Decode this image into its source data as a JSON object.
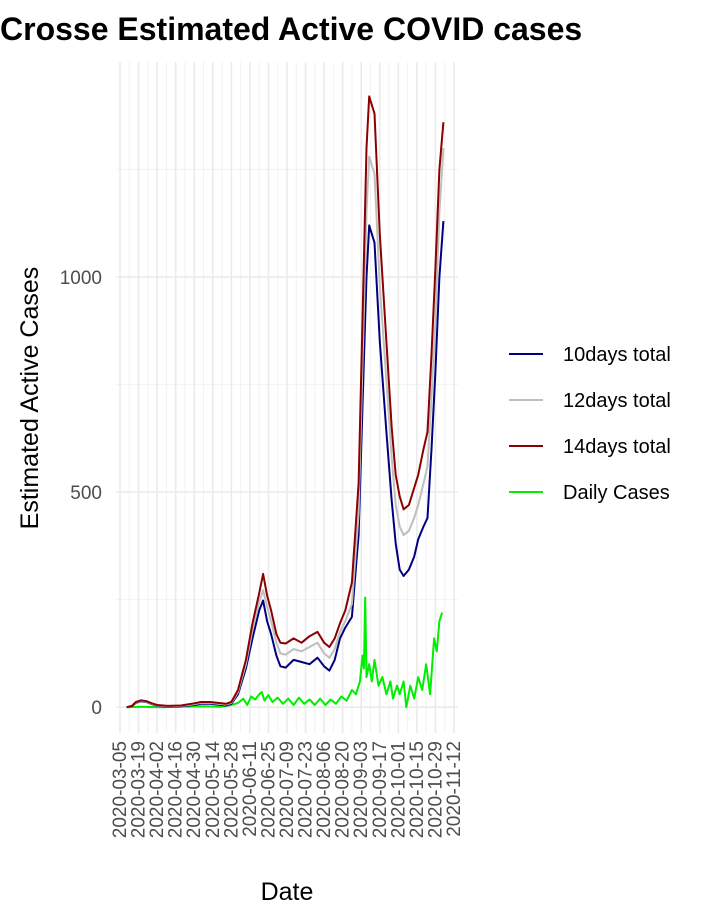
{
  "chart_data": {
    "type": "line",
    "title": "Crosse Estimated Active COVID cases",
    "xlabel": "Date",
    "ylabel": "Estimated Active Cases",
    "x_ticks": [
      "2020-03-05",
      "2020-03-19",
      "2020-04-02",
      "2020-04-16",
      "2020-04-30",
      "2020-05-14",
      "2020-05-28",
      "2020-06-11",
      "2020-06-25",
      "2020-07-09",
      "2020-07-23",
      "2020-08-06",
      "2020-08-20",
      "2020-09-03",
      "2020-09-17",
      "2020-10-01",
      "2020-10-15",
      "2020-10-29",
      "2020-11-12"
    ],
    "y_ticks": [
      "0",
      "500",
      "1000"
    ],
    "xlim": [
      "2020-03-05",
      "2020-11-12"
    ],
    "ylim": [
      -60,
      1500
    ],
    "grid": true,
    "legend_position": "right",
    "series": [
      {
        "name": "10days total",
        "color": "#000080",
        "points": [
          [
            "2020-03-10",
            0
          ],
          [
            "2020-03-14",
            2
          ],
          [
            "2020-03-17",
            10
          ],
          [
            "2020-03-21",
            14
          ],
          [
            "2020-03-25",
            12
          ],
          [
            "2020-03-29",
            7
          ],
          [
            "2020-04-02",
            3
          ],
          [
            "2020-04-10",
            1
          ],
          [
            "2020-04-20",
            2
          ],
          [
            "2020-04-30",
            5
          ],
          [
            "2020-05-05",
            8
          ],
          [
            "2020-05-12",
            8
          ],
          [
            "2020-05-18",
            6
          ],
          [
            "2020-05-24",
            4
          ],
          [
            "2020-05-28",
            8
          ],
          [
            "2020-06-02",
            30
          ],
          [
            "2020-06-08",
            90
          ],
          [
            "2020-06-13",
            160
          ],
          [
            "2020-06-18",
            225
          ],
          [
            "2020-06-21",
            248
          ],
          [
            "2020-06-24",
            200
          ],
          [
            "2020-06-27",
            170
          ],
          [
            "2020-07-01",
            120
          ],
          [
            "2020-07-04",
            95
          ],
          [
            "2020-07-08",
            92
          ],
          [
            "2020-07-14",
            110
          ],
          [
            "2020-07-20",
            105
          ],
          [
            "2020-07-26",
            100
          ],
          [
            "2020-08-01",
            115
          ],
          [
            "2020-08-06",
            95
          ],
          [
            "2020-08-10",
            85
          ],
          [
            "2020-08-14",
            110
          ],
          [
            "2020-08-18",
            160
          ],
          [
            "2020-08-22",
            185
          ],
          [
            "2020-08-27",
            210
          ],
          [
            "2020-09-01",
            400
          ],
          [
            "2020-09-04",
            700
          ],
          [
            "2020-09-07",
            1000
          ],
          [
            "2020-09-09",
            1120
          ],
          [
            "2020-09-13",
            1080
          ],
          [
            "2020-09-17",
            850
          ],
          [
            "2020-09-22",
            640
          ],
          [
            "2020-09-26",
            480
          ],
          [
            "2020-09-29",
            380
          ],
          [
            "2020-10-02",
            320
          ],
          [
            "2020-10-05",
            305
          ],
          [
            "2020-10-09",
            320
          ],
          [
            "2020-10-13",
            350
          ],
          [
            "2020-10-16",
            390
          ],
          [
            "2020-10-20",
            420
          ],
          [
            "2020-10-23",
            440
          ],
          [
            "2020-10-26",
            600
          ],
          [
            "2020-10-29",
            780
          ],
          [
            "2020-11-01",
            1000
          ],
          [
            "2020-11-04",
            1130
          ]
        ]
      },
      {
        "name": "12days total",
        "color": "#bebebe",
        "points": [
          [
            "2020-03-10",
            0
          ],
          [
            "2020-03-14",
            3
          ],
          [
            "2020-03-17",
            11
          ],
          [
            "2020-03-21",
            15
          ],
          [
            "2020-03-25",
            13
          ],
          [
            "2020-03-29",
            8
          ],
          [
            "2020-04-02",
            4
          ],
          [
            "2020-04-10",
            2
          ],
          [
            "2020-04-20",
            3
          ],
          [
            "2020-04-30",
            7
          ],
          [
            "2020-05-05",
            10
          ],
          [
            "2020-05-12",
            10
          ],
          [
            "2020-05-18",
            8
          ],
          [
            "2020-05-24",
            6
          ],
          [
            "2020-05-28",
            10
          ],
          [
            "2020-06-02",
            35
          ],
          [
            "2020-06-08",
            100
          ],
          [
            "2020-06-13",
            180
          ],
          [
            "2020-06-18",
            245
          ],
          [
            "2020-06-21",
            272
          ],
          [
            "2020-06-24",
            235
          ],
          [
            "2020-06-27",
            200
          ],
          [
            "2020-07-01",
            150
          ],
          [
            "2020-07-04",
            125
          ],
          [
            "2020-07-08",
            122
          ],
          [
            "2020-07-14",
            135
          ],
          [
            "2020-07-20",
            130
          ],
          [
            "2020-07-26",
            140
          ],
          [
            "2020-08-01",
            150
          ],
          [
            "2020-08-06",
            125
          ],
          [
            "2020-08-10",
            115
          ],
          [
            "2020-08-14",
            135
          ],
          [
            "2020-08-18",
            175
          ],
          [
            "2020-08-22",
            200
          ],
          [
            "2020-08-27",
            240
          ],
          [
            "2020-09-01",
            450
          ],
          [
            "2020-09-04",
            800
          ],
          [
            "2020-09-07",
            1150
          ],
          [
            "2020-09-09",
            1280
          ],
          [
            "2020-09-13",
            1240
          ],
          [
            "2020-09-17",
            980
          ],
          [
            "2020-09-22",
            760
          ],
          [
            "2020-09-26",
            580
          ],
          [
            "2020-09-29",
            470
          ],
          [
            "2020-10-02",
            420
          ],
          [
            "2020-10-05",
            400
          ],
          [
            "2020-10-09",
            410
          ],
          [
            "2020-10-13",
            440
          ],
          [
            "2020-10-16",
            470
          ],
          [
            "2020-10-20",
            520
          ],
          [
            "2020-10-23",
            560
          ],
          [
            "2020-10-26",
            720
          ],
          [
            "2020-10-29",
            900
          ],
          [
            "2020-11-01",
            1150
          ],
          [
            "2020-11-04",
            1300
          ]
        ]
      },
      {
        "name": "14days total",
        "color": "#8b0000",
        "points": [
          [
            "2020-03-10",
            0
          ],
          [
            "2020-03-14",
            3
          ],
          [
            "2020-03-17",
            12
          ],
          [
            "2020-03-21",
            16
          ],
          [
            "2020-03-25",
            14
          ],
          [
            "2020-03-29",
            9
          ],
          [
            "2020-04-02",
            5
          ],
          [
            "2020-04-10",
            3
          ],
          [
            "2020-04-20",
            4
          ],
          [
            "2020-04-30",
            9
          ],
          [
            "2020-05-05",
            12
          ],
          [
            "2020-05-12",
            12
          ],
          [
            "2020-05-18",
            10
          ],
          [
            "2020-05-24",
            8
          ],
          [
            "2020-05-28",
            12
          ],
          [
            "2020-06-02",
            40
          ],
          [
            "2020-06-08",
            110
          ],
          [
            "2020-06-13",
            195
          ],
          [
            "2020-06-18",
            265
          ],
          [
            "2020-06-21",
            310
          ],
          [
            "2020-06-24",
            260
          ],
          [
            "2020-06-27",
            225
          ],
          [
            "2020-07-01",
            170
          ],
          [
            "2020-07-04",
            150
          ],
          [
            "2020-07-08",
            148
          ],
          [
            "2020-07-14",
            160
          ],
          [
            "2020-07-20",
            150
          ],
          [
            "2020-07-26",
            165
          ],
          [
            "2020-08-01",
            175
          ],
          [
            "2020-08-06",
            150
          ],
          [
            "2020-08-10",
            140
          ],
          [
            "2020-08-14",
            160
          ],
          [
            "2020-08-18",
            195
          ],
          [
            "2020-08-22",
            225
          ],
          [
            "2020-08-27",
            290
          ],
          [
            "2020-09-01",
            520
          ],
          [
            "2020-09-04",
            900
          ],
          [
            "2020-09-07",
            1300
          ],
          [
            "2020-09-09",
            1420
          ],
          [
            "2020-09-13",
            1380
          ],
          [
            "2020-09-17",
            1100
          ],
          [
            "2020-09-22",
            850
          ],
          [
            "2020-09-26",
            650
          ],
          [
            "2020-09-29",
            540
          ],
          [
            "2020-10-02",
            490
          ],
          [
            "2020-10-05",
            460
          ],
          [
            "2020-10-09",
            470
          ],
          [
            "2020-10-13",
            510
          ],
          [
            "2020-10-16",
            540
          ],
          [
            "2020-10-20",
            600
          ],
          [
            "2020-10-23",
            640
          ],
          [
            "2020-10-26",
            820
          ],
          [
            "2020-10-29",
            1020
          ],
          [
            "2020-11-01",
            1250
          ],
          [
            "2020-11-04",
            1360
          ]
        ]
      },
      {
        "name": "Daily Cases",
        "color": "#00ee00",
        "points": [
          [
            "2020-03-10",
            0
          ],
          [
            "2020-03-20",
            1
          ],
          [
            "2020-04-05",
            0
          ],
          [
            "2020-04-20",
            1
          ],
          [
            "2020-05-05",
            2
          ],
          [
            "2020-05-20",
            1
          ],
          [
            "2020-05-28",
            5
          ],
          [
            "2020-06-02",
            10
          ],
          [
            "2020-06-06",
            20
          ],
          [
            "2020-06-09",
            5
          ],
          [
            "2020-06-12",
            25
          ],
          [
            "2020-06-15",
            18
          ],
          [
            "2020-06-18",
            30
          ],
          [
            "2020-06-20",
            35
          ],
          [
            "2020-06-22",
            15
          ],
          [
            "2020-06-25",
            28
          ],
          [
            "2020-06-28",
            12
          ],
          [
            "2020-07-02",
            22
          ],
          [
            "2020-07-06",
            8
          ],
          [
            "2020-07-10",
            20
          ],
          [
            "2020-07-14",
            5
          ],
          [
            "2020-07-18",
            22
          ],
          [
            "2020-07-22",
            8
          ],
          [
            "2020-07-26",
            18
          ],
          [
            "2020-07-30",
            5
          ],
          [
            "2020-08-03",
            20
          ],
          [
            "2020-08-07",
            5
          ],
          [
            "2020-08-11",
            18
          ],
          [
            "2020-08-15",
            8
          ],
          [
            "2020-08-19",
            25
          ],
          [
            "2020-08-23",
            15
          ],
          [
            "2020-08-27",
            40
          ],
          [
            "2020-08-30",
            30
          ],
          [
            "2020-09-02",
            60
          ],
          [
            "2020-09-04",
            120
          ],
          [
            "2020-09-05",
            90
          ],
          [
            "2020-09-06",
            255
          ],
          [
            "2020-09-07",
            70
          ],
          [
            "2020-09-09",
            100
          ],
          [
            "2020-09-11",
            60
          ],
          [
            "2020-09-13",
            110
          ],
          [
            "2020-09-16",
            50
          ],
          [
            "2020-09-19",
            70
          ],
          [
            "2020-09-22",
            30
          ],
          [
            "2020-09-25",
            60
          ],
          [
            "2020-09-27",
            20
          ],
          [
            "2020-09-30",
            50
          ],
          [
            "2020-10-02",
            30
          ],
          [
            "2020-10-05",
            60
          ],
          [
            "2020-10-07",
            0
          ],
          [
            "2020-10-10",
            50
          ],
          [
            "2020-10-13",
            20
          ],
          [
            "2020-10-16",
            70
          ],
          [
            "2020-10-19",
            40
          ],
          [
            "2020-10-22",
            100
          ],
          [
            "2020-10-25",
            30
          ],
          [
            "2020-10-28",
            160
          ],
          [
            "2020-10-30",
            130
          ],
          [
            "2020-11-01",
            200
          ],
          [
            "2020-11-03",
            220
          ]
        ]
      }
    ]
  }
}
